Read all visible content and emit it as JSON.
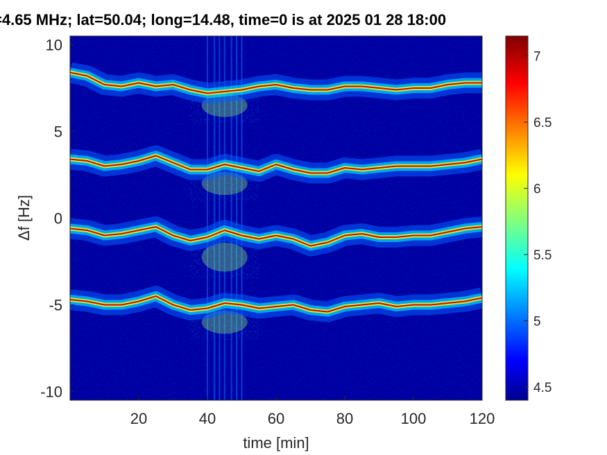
{
  "chart_data": {
    "type": "heatmap",
    "title": "=4.65 MHz;  lat=50.04; long=14.48, time=0 is at 2025 01 28 18:00",
    "xlabel": "time [min]",
    "ylabel": "Δf [Hz]",
    "xlim": [
      0,
      120
    ],
    "ylim": [
      -10.5,
      10.5
    ],
    "xticks": [
      20,
      40,
      60,
      80,
      100,
      120
    ],
    "yticks": [
      10,
      5,
      0,
      -5,
      -10
    ],
    "colorbar": {
      "min": 4.4,
      "max": 7.15,
      "ticks": [
        4.5,
        5,
        5.5,
        6,
        6.5,
        7
      ]
    },
    "background_value": 4.45,
    "colors": {
      "background": "#00008f",
      "low": "#00008f",
      "high": "#800000"
    },
    "series": [
      {
        "time": [
          0,
          5,
          10,
          15,
          20,
          25,
          30,
          35,
          40,
          45,
          50,
          55,
          60,
          65,
          70,
          75,
          80,
          85,
          90,
          95,
          100,
          105,
          110,
          115,
          120
        ],
        "freq": [
          8.4,
          8.2,
          7.7,
          7.6,
          7.8,
          7.6,
          7.7,
          7.4,
          7.2,
          7.3,
          7.4,
          7.6,
          7.7,
          7.5,
          7.4,
          7.4,
          7.6,
          7.6,
          7.5,
          7.4,
          7.5,
          7.5,
          7.7,
          7.8,
          7.8
        ]
      },
      {
        "time": [
          0,
          5,
          10,
          15,
          20,
          25,
          30,
          35,
          40,
          45,
          50,
          55,
          60,
          65,
          70,
          75,
          80,
          85,
          90,
          95,
          100,
          105,
          110,
          115,
          120
        ],
        "freq": [
          3.4,
          3.3,
          3.0,
          3.1,
          3.3,
          3.6,
          3.2,
          2.8,
          2.8,
          3.1,
          2.9,
          2.7,
          3.1,
          2.8,
          2.6,
          2.6,
          2.9,
          2.8,
          2.9,
          3.0,
          3.0,
          3.0,
          3.1,
          3.2,
          3.4
        ]
      },
      {
        "time": [
          0,
          5,
          10,
          15,
          20,
          25,
          30,
          35,
          40,
          45,
          50,
          55,
          60,
          65,
          70,
          75,
          80,
          85,
          90,
          95,
          100,
          105,
          110,
          115,
          120
        ],
        "freq": [
          -0.6,
          -0.7,
          -1.0,
          -0.9,
          -0.7,
          -0.5,
          -1.0,
          -1.3,
          -1.1,
          -0.7,
          -1.0,
          -1.2,
          -1.0,
          -1.2,
          -1.6,
          -1.4,
          -1.0,
          -0.9,
          -1.1,
          -1.1,
          -1.0,
          -1.0,
          -0.8,
          -0.6,
          -0.5
        ]
      },
      {
        "time": [
          0,
          5,
          10,
          15,
          20,
          25,
          30,
          35,
          40,
          45,
          50,
          55,
          60,
          65,
          70,
          75,
          80,
          85,
          90,
          95,
          100,
          105,
          110,
          115,
          120
        ],
        "freq": [
          -4.7,
          -4.8,
          -5.0,
          -5.0,
          -4.8,
          -4.5,
          -5.0,
          -5.3,
          -5.2,
          -4.9,
          -5.0,
          -5.2,
          -5.1,
          -5.0,
          -5.3,
          -5.4,
          -5.1,
          -5.0,
          -4.9,
          -5.1,
          -5.0,
          -5.0,
          -4.9,
          -4.8,
          -4.6
        ]
      }
    ],
    "spread_region": {
      "time": [
        35,
        55
      ],
      "freq_ranges": [
        [
          5.5,
          7.5
        ],
        [
          1,
          3
        ],
        [
          -3.5,
          -1
        ],
        [
          -7,
          -5
        ]
      ]
    },
    "interference_columns": [
      40,
      42,
      43.5,
      45,
      47,
      48.5,
      50
    ]
  }
}
